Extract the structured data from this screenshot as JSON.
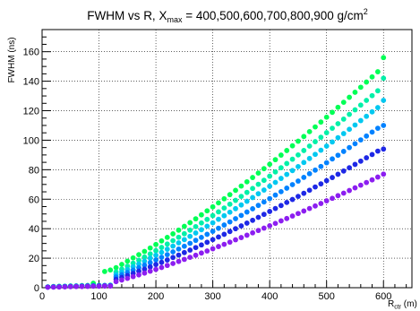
{
  "chart_data": {
    "type": "scatter",
    "title": {
      "text": "FWHM vs R, X",
      "sub": "max",
      "rest": " = 400,500,600,700,800,900 g/cm",
      "sup": "2"
    },
    "xlabel": {
      "text": "R",
      "sub": "ctr",
      "rest": " (m)"
    },
    "ylabel": "FWHM (ns)",
    "xlim": [
      0,
      650
    ],
    "ylim": [
      0,
      175
    ],
    "xticks": [
      0,
      100,
      200,
      300,
      400,
      500,
      600
    ],
    "xtick_labels": [
      "0",
      "100",
      "200",
      "300",
      "400",
      "500",
      "600"
    ],
    "yticks": [
      0,
      20,
      40,
      60,
      80,
      100,
      120,
      140,
      160
    ],
    "ytick_labels": [
      "0",
      "20",
      "40",
      "60",
      "80",
      "100",
      "120",
      "140",
      "160"
    ],
    "grid": true,
    "x": [
      10,
      20,
      30,
      40,
      50,
      60,
      70,
      80,
      90,
      100,
      110,
      120,
      130,
      140,
      150,
      160,
      170,
      180,
      190,
      200,
      210,
      220,
      230,
      240,
      250,
      260,
      270,
      280,
      290,
      300,
      310,
      320,
      330,
      340,
      350,
      360,
      370,
      380,
      390,
      400,
      410,
      420,
      430,
      440,
      450,
      460,
      470,
      480,
      490,
      500,
      510,
      520,
      530,
      540,
      550,
      560,
      570,
      580,
      590,
      600
    ],
    "series": [
      {
        "color": "#00ff55",
        "values": [
          0.5,
          0.8,
          1.0,
          1.0,
          1.2,
          1.2,
          1.4,
          1.5,
          3,
          1.6,
          11,
          12,
          13.6,
          15.8,
          18.0,
          20.2,
          22.4,
          24.6,
          26.9,
          29.3,
          31.7,
          34.1,
          36.5,
          39.0,
          41.6,
          44.1,
          46.7,
          49.4,
          52.1,
          54.8,
          57.5,
          60.3,
          63.1,
          66.0,
          68.9,
          71.8,
          74.7,
          77.7,
          80.7,
          83.7,
          86.8,
          89.9,
          93.0,
          96.2,
          99.3,
          102.5,
          105.8,
          109.0,
          112.3,
          115.6,
          118.9,
          122.3,
          125.7,
          129.1,
          132.5,
          135.9,
          139.4,
          142.9,
          146.4,
          156
        ]
      },
      {
        "color": "#00f0a8",
        "values": [
          0.5,
          0.7,
          0.9,
          1.0,
          1.1,
          1.2,
          1.3,
          1.4,
          1.5,
          1.5,
          1.6,
          1.7,
          10.7,
          12.6,
          14.6,
          16.6,
          18.6,
          20.8,
          22.9,
          25.1,
          27.3,
          29.6,
          31.9,
          34.2,
          36.6,
          39.0,
          41.4,
          43.9,
          46.3,
          48.9,
          51.4,
          54.0,
          56.6,
          59.2,
          61.9,
          64.6,
          67.3,
          70.1,
          72.8,
          75.6,
          78.5,
          81.3,
          84.2,
          87.1,
          90.0,
          93.0,
          96.0,
          99.0,
          102.0,
          105.1,
          108.1,
          111.2,
          114.3,
          117.5,
          120.6,
          123.8,
          127.0,
          130.2,
          133.5,
          142
        ]
      },
      {
        "color": "#00c8f0",
        "values": [
          0.5,
          0.7,
          0.8,
          0.9,
          1.0,
          1.1,
          1.2,
          1.3,
          1.4,
          1.4,
          1.5,
          1.6,
          8.9,
          10.6,
          12.4,
          14.2,
          16.1,
          18.0,
          20.0,
          22.0,
          24.0,
          26.1,
          28.2,
          30.4,
          32.6,
          34.8,
          37.1,
          39.3,
          41.7,
          44.0,
          46.4,
          48.8,
          51.2,
          53.6,
          56.1,
          58.6,
          61.1,
          63.7,
          66.2,
          68.8,
          71.4,
          74.1,
          76.8,
          79.4,
          82.1,
          84.9,
          87.6,
          90.4,
          93.2,
          96.0,
          98.8,
          101.7,
          104.5,
          107.4,
          110.3,
          113.3,
          116.2,
          119.2,
          122.1,
          127
        ]
      },
      {
        "color": "#0082ff",
        "values": [
          0.4,
          0.6,
          0.7,
          0.8,
          0.9,
          1.0,
          1.1,
          1.2,
          1.3,
          1.3,
          1.4,
          1.5,
          7.3,
          8.8,
          10.3,
          11.9,
          13.6,
          15.3,
          17.0,
          18.8,
          20.6,
          22.4,
          24.3,
          26.2,
          28.1,
          30.1,
          32.1,
          34.1,
          36.2,
          38.2,
          40.3,
          42.5,
          44.6,
          46.8,
          49.0,
          51.3,
          53.5,
          55.8,
          58.1,
          60.4,
          62.8,
          65.1,
          67.5,
          69.9,
          72.3,
          74.8,
          77.3,
          79.7,
          82.2,
          84.7,
          87.3,
          89.8,
          92.4,
          95.0,
          97.6,
          100.2,
          102.8,
          105.5,
          108.1,
          110
        ]
      },
      {
        "color": "#1e28e6",
        "values": [
          0.4,
          0.5,
          0.6,
          0.7,
          0.8,
          0.9,
          1.0,
          1.1,
          1.1,
          1.2,
          1.3,
          1.3,
          5.7,
          7.0,
          8.3,
          9.7,
          11.2,
          12.6,
          14.1,
          15.7,
          17.2,
          18.8,
          20.5,
          22.1,
          23.8,
          25.5,
          27.2,
          29.0,
          30.8,
          32.6,
          34.4,
          36.2,
          38.1,
          40.0,
          41.9,
          43.8,
          45.7,
          47.7,
          49.7,
          51.7,
          53.7,
          55.7,
          57.8,
          59.8,
          61.9,
          64.0,
          66.1,
          68.3,
          70.4,
          72.6,
          74.7,
          76.9,
          79.1,
          81.3,
          83.6,
          85.8,
          88.1,
          90.3,
          92.6,
          94
        ]
      },
      {
        "color": "#8c1ef0",
        "values": [
          0.3,
          0.4,
          0.5,
          0.6,
          0.7,
          0.8,
          0.8,
          0.9,
          1.0,
          1.0,
          1.1,
          1.1,
          4.1,
          5.2,
          6.3,
          7.5,
          8.7,
          9.9,
          11.2,
          12.4,
          13.7,
          15.1,
          16.4,
          17.8,
          19.2,
          20.6,
          22.0,
          23.5,
          24.9,
          26.4,
          27.9,
          29.4,
          30.9,
          32.5,
          34.0,
          35.6,
          37.2,
          38.8,
          40.4,
          42.0,
          43.6,
          45.3,
          46.9,
          48.6,
          50.3,
          52.0,
          53.7,
          55.4,
          57.1,
          58.9,
          60.6,
          62.4,
          64.1,
          65.9,
          67.7,
          69.5,
          71.3,
          73.1,
          75.0,
          77
        ]
      }
    ]
  }
}
